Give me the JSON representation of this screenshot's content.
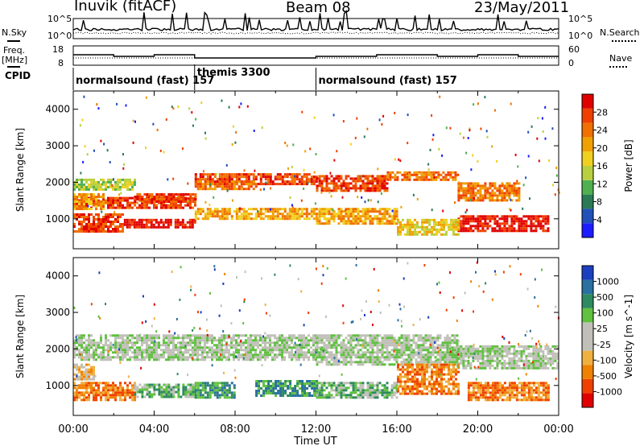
{
  "header": {
    "station": "Inuvik (fitACF)",
    "beam": "Beam 08",
    "date": "23/May/2011"
  },
  "top_panels": {
    "nsky_label": "N.Sky",
    "nsearch_label": "N.Search",
    "freq_label_line1": "Freq.",
    "freq_label_line2": "[MHz]",
    "nave_label": "Nave",
    "cpid_label": "CPID",
    "nsky_ticks": [
      "10^5",
      "10^0"
    ],
    "nsearch_ticks": [
      "10^5",
      "10^0"
    ],
    "freq_ticks": [
      "18",
      "8"
    ],
    "nave_ticks": [
      "60",
      "0"
    ]
  },
  "cpid_segments": [
    {
      "label": "normalsound (fast) 157",
      "start": 0,
      "end": 6
    },
    {
      "label": "themis 3300",
      "start": 6,
      "end": 12
    },
    {
      "label": "normalsound (fast) 157",
      "start": 12,
      "end": 24
    }
  ],
  "chart_data": [
    {
      "type": "heatmap",
      "title": "Power",
      "ylabel": "Slant Range [km]",
      "xlabel": "Time UT",
      "ylim": [
        180,
        4500
      ],
      "xlim": [
        0,
        24
      ],
      "y_ticks": [
        1000,
        2000,
        3000,
        4000
      ],
      "x_tick_labels": [
        "00:00",
        "04:00",
        "08:00",
        "12:00",
        "16:00",
        "20:00",
        "00:00"
      ],
      "colorbar": {
        "label": "Power [dB]",
        "ticks": [
          "4",
          "8",
          "12",
          "16",
          "20",
          "24",
          "28"
        ],
        "colors": [
          "#1c1cff",
          "#2050b8",
          "#2a7a55",
          "#50b050",
          "#b8d040",
          "#f0d020",
          "#f0a000",
          "#f07000",
          "#f04000",
          "#e00000"
        ]
      },
      "regions": [
        {
          "x": [
            0,
            2.5
          ],
          "y": [
            650,
            1150
          ],
          "level": 8
        },
        {
          "x": [
            2.5,
            6
          ],
          "y": [
            750,
            1000
          ],
          "level": 9
        },
        {
          "x": [
            0,
            6
          ],
          "y": [
            1300,
            1600
          ],
          "level": 8
        },
        {
          "x": [
            3,
            6
          ],
          "y": [
            1500,
            1700
          ],
          "level": 8
        },
        {
          "x": [
            6,
            12
          ],
          "y": [
            1950,
            2250
          ],
          "level": 8
        },
        {
          "x": [
            6,
            9
          ],
          "y": [
            1800,
            2050
          ],
          "level": 7
        },
        {
          "x": [
            12,
            15.5
          ],
          "y": [
            1750,
            2200
          ],
          "level": 8
        },
        {
          "x": [
            15.5,
            19
          ],
          "y": [
            2100,
            2300
          ],
          "level": 7
        },
        {
          "x": [
            19,
            22
          ],
          "y": [
            1500,
            2000
          ],
          "level": 7
        },
        {
          "x": [
            12,
            16
          ],
          "y": [
            900,
            1300
          ],
          "level": 6
        },
        {
          "x": [
            19,
            23.5
          ],
          "y": [
            700,
            1100
          ],
          "level": 9
        },
        {
          "x": [
            0,
            3
          ],
          "y": [
            1800,
            2100
          ],
          "level": 4
        },
        {
          "x": [
            6,
            12
          ],
          "y": [
            1000,
            1300
          ],
          "level": 6
        },
        {
          "x": [
            16,
            19
          ],
          "y": [
            600,
            1000
          ],
          "level": 5
        },
        {
          "x": [
            0,
            1.5
          ],
          "y": [
            1300,
            1700
          ],
          "level": 6
        }
      ]
    },
    {
      "type": "heatmap",
      "title": "Velocity",
      "ylabel": "Slant Range [km]",
      "xlabel": "Time UT",
      "ylim": [
        180,
        4500
      ],
      "xlim": [
        0,
        24
      ],
      "y_ticks": [
        1000,
        2000,
        3000,
        4000
      ],
      "x_tick_labels": [
        "00:00",
        "04:00",
        "08:00",
        "12:00",
        "16:00",
        "20:00",
        "00:00"
      ],
      "colorbar": {
        "label": "Velocity [m s^-1]",
        "ticks": [
          "1000",
          "500",
          "100",
          "25",
          "-25",
          "-100",
          "-500",
          "-1000"
        ],
        "colors": [
          "#1a40c0",
          "#2a70a0",
          "#2e8a60",
          "#60c040",
          "#c0c0b8",
          "#c0c0b8",
          "#f0b040",
          "#f08000",
          "#f04000",
          "#e00000"
        ]
      },
      "regions": [
        {
          "x": [
            0,
            12
          ],
          "y": [
            1700,
            2400
          ],
          "level": 4
        },
        {
          "x": [
            12,
            19
          ],
          "y": [
            1600,
            2400
          ],
          "level": 4
        },
        {
          "x": [
            19,
            24
          ],
          "y": [
            1500,
            2100
          ],
          "level": 4
        },
        {
          "x": [
            0,
            3
          ],
          "y": [
            600,
            1100
          ],
          "level": 7
        },
        {
          "x": [
            3,
            6
          ],
          "y": [
            700,
            1050
          ],
          "level": 3
        },
        {
          "x": [
            6,
            8
          ],
          "y": [
            700,
            1100
          ],
          "level": 2
        },
        {
          "x": [
            9,
            12
          ],
          "y": [
            700,
            1150
          ],
          "level": 2
        },
        {
          "x": [
            12,
            16
          ],
          "y": [
            700,
            1100
          ],
          "level": 3
        },
        {
          "x": [
            16,
            19
          ],
          "y": [
            800,
            1600
          ],
          "level": 7
        },
        {
          "x": [
            19.5,
            23.5
          ],
          "y": [
            600,
            1100
          ],
          "level": 7
        },
        {
          "x": [
            0,
            1
          ],
          "y": [
            1200,
            1600
          ],
          "level": 6
        }
      ]
    }
  ]
}
